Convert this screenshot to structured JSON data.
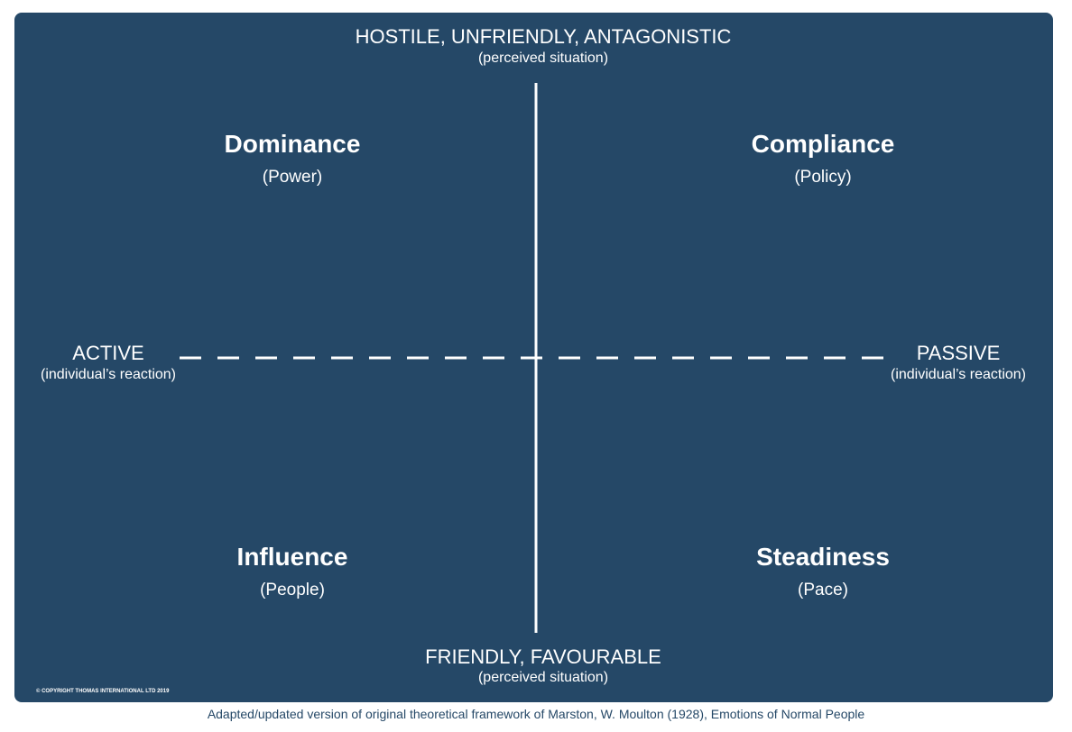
{
  "top": {
    "label": "HOSTILE, UNFRIENDLY, ANTAGONISTIC",
    "sublabel": "(perceived situation)"
  },
  "bottom": {
    "label": "FRIENDLY, FAVOURABLE",
    "sublabel": "(perceived situation)"
  },
  "left": {
    "label": "ACTIVE",
    "sublabel": "(individual’s reaction)"
  },
  "right": {
    "label": "PASSIVE",
    "sublabel": "(individual’s reaction)"
  },
  "quadrants": [
    {
      "title": "Dominance",
      "subtitle": "(Power)"
    },
    {
      "title": "Compliance",
      "subtitle": "(Policy)"
    },
    {
      "title": "Influence",
      "subtitle": "(People)"
    },
    {
      "title": "Steadiness",
      "subtitle": "(Pace)"
    }
  ],
  "copyright": "© COPYRIGHT THOMAS INTERNATIONAL LTD 2019",
  "caption": "Adapted/updated version of original theoretical framework of Marston, W. Moulton (1928), Emotions of Normal People"
}
